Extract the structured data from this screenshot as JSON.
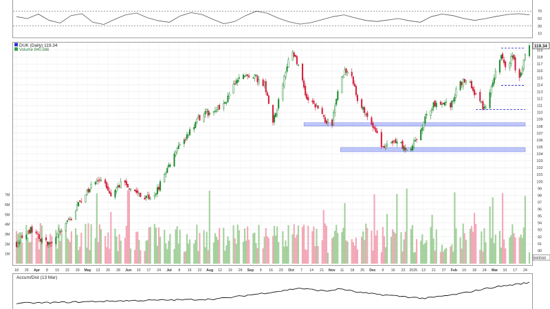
{
  "ticker_label": "DUK (Daily) 119.34",
  "volume_label": "Volume 840,566",
  "lower_label": "Accum/Dist (13 Mar)",
  "last_price_tag": "119.34",
  "volume_tag": "840566",
  "colors": {
    "up": "#1f8a2e",
    "down": "#d21f3c",
    "vol_up": "#9fcf98",
    "vol_down": "#f2a3b4",
    "support_band": "#aab4f5",
    "dashed_line": "#2b33c8",
    "grid": "#e6e6e6"
  },
  "chart_data": [
    {
      "type": "line",
      "panel": "upper-indicator",
      "y_ticks": [
        "70",
        "50",
        "30",
        "10"
      ],
      "ylim": [
        0,
        100
      ],
      "reference_lines": [
        70,
        30
      ],
      "values": [
        55,
        50,
        62,
        45,
        38,
        58,
        63,
        40,
        34,
        48,
        60,
        65,
        52,
        44,
        40,
        57,
        66,
        61,
        48,
        36,
        42,
        58,
        70,
        64,
        51,
        41,
        35,
        39,
        47,
        55,
        60,
        52,
        45,
        42,
        46,
        50,
        44,
        40,
        55,
        62,
        58,
        50,
        45,
        50,
        56,
        61,
        63,
        60
      ]
    },
    {
      "type": "candlestick",
      "panel": "price",
      "y_ticks": [
        "119",
        "118",
        "117",
        "116",
        "115",
        "114",
        "113",
        "112",
        "111",
        "110",
        "109",
        "108",
        "107",
        "106",
        "105",
        "104",
        "103",
        "102",
        "101",
        "100",
        "99",
        "98",
        "97",
        "96",
        "95",
        "94",
        "93",
        "92",
        "91",
        "90",
        "89"
      ],
      "ylim": [
        88.5,
        119.9
      ],
      "path_days": [
        0,
        5,
        10,
        15,
        22,
        30,
        38,
        45,
        52,
        60,
        68,
        75,
        82,
        90,
        98,
        105,
        112,
        120,
        128,
        135,
        140,
        143,
        146,
        152,
        158,
        164,
        170,
        176,
        182,
        188,
        194,
        200,
        206,
        212,
        218,
        224,
        230,
        236,
        242,
        248,
        254,
        260,
        266,
        272,
        278,
        284,
        290,
        296,
        302,
        308,
        314,
        320,
        326,
        332,
        338,
        344,
        348,
        352,
        356,
        360,
        364
      ],
      "path_close": [
        91,
        92,
        93,
        92,
        91,
        92.5,
        94.5,
        97,
        99,
        100.5,
        98,
        100,
        99,
        97.5,
        98,
        101,
        104,
        106,
        109,
        110,
        110,
        111,
        110.5,
        113,
        115,
        115.5,
        115,
        114,
        108.5,
        113,
        119,
        117,
        112,
        111,
        109,
        108.5,
        115,
        116.5,
        112,
        110,
        107.5,
        105,
        106,
        105.5,
        104.5,
        106,
        109,
        111,
        111.5,
        111,
        114,
        115,
        112.5,
        110.5,
        114.5,
        118,
        116.5,
        118.5,
        114,
        117.5,
        119.34
      ],
      "support_bands": [
        [
          108,
          108.5
        ],
        [
          104.3,
          104.9
        ]
      ],
      "dashed_levels": [
        {
          "level": 119.3,
          "start_day": 344
        },
        {
          "level": 113.9,
          "start_day": 344
        },
        {
          "level": 110.4,
          "start_day": 326
        }
      ]
    },
    {
      "type": "bar",
      "panel": "volume",
      "y_ticks": [
        "7M",
        "6M",
        "5M",
        "4M",
        "3M",
        "2M",
        "1M"
      ],
      "ylim": [
        0,
        7400000
      ],
      "typical_volume": 2500000
    },
    {
      "type": "line",
      "panel": "accum-dist",
      "path_days": [
        0,
        25,
        50,
        75,
        100,
        125,
        140,
        150,
        160,
        170,
        180,
        190,
        200,
        210,
        220,
        230,
        240,
        250,
        260,
        270,
        280,
        290,
        300,
        310,
        320,
        330,
        340,
        350,
        360,
        364
      ],
      "path_values": [
        10,
        12,
        15,
        18,
        20,
        22,
        24,
        28,
        34,
        40,
        46,
        52,
        60,
        55,
        50,
        58,
        48,
        42,
        38,
        34,
        30,
        26,
        32,
        38,
        46,
        56,
        64,
        70,
        76,
        78
      ]
    },
    {
      "type": "axis",
      "x_ticks": [
        "18",
        "25",
        "Apr",
        "8",
        "15",
        "22",
        "29",
        "May",
        "13",
        "20",
        "28",
        "Jun",
        "10",
        "17",
        "24",
        "Jul",
        "8",
        "15",
        "22",
        "Aug",
        "12",
        "19",
        "26",
        "Sep",
        "9",
        "16",
        "23",
        "Oct",
        "7",
        "14",
        "21",
        "Nov",
        "11",
        "18",
        "25",
        "Dec",
        "9",
        "16",
        "23",
        "2025",
        "13",
        "21",
        "27",
        "Feb",
        "10",
        "18",
        "24",
        "Mar",
        "10",
        "17",
        "24"
      ]
    }
  ]
}
